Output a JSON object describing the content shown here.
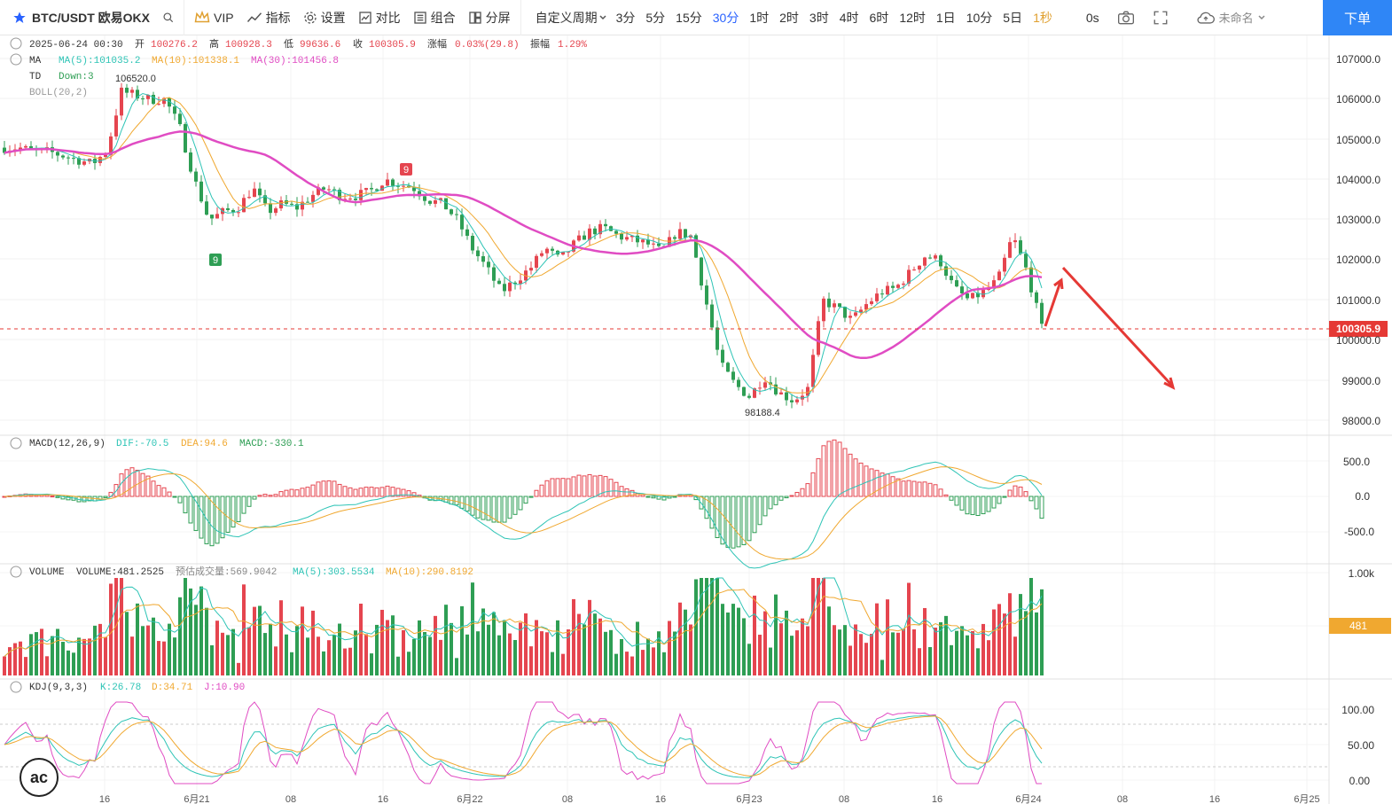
{
  "toolbar": {
    "symbol": "BTC/USDT 欧易OKX",
    "vip": "VIP",
    "indicators": "指标",
    "settings": "设置",
    "compare": "对比",
    "combo": "组合",
    "split": "分屏",
    "custom_period": "自定义周期",
    "periods": [
      "3分",
      "5分",
      "15分",
      "30分",
      "1时",
      "2时",
      "3时",
      "4时",
      "6时",
      "12时",
      "1日",
      "10分",
      "5日",
      "1秒"
    ],
    "active_period": "30分",
    "countdown": "0s",
    "layout_name": "未命名",
    "order_button": "下单"
  },
  "colors": {
    "up": "#e5454f",
    "down": "#2e9e54",
    "ma5": "#2ec4b6",
    "ma10": "#f0a830",
    "ma30": "#e04cc3",
    "accent": "#2962ff",
    "price_line": "#e53935"
  },
  "legend": {
    "date": "2025-06-24 00:30",
    "open_label": "开",
    "open": "100276.2",
    "high_label": "高",
    "high": "100928.3",
    "low_label": "低",
    "low": "99636.6",
    "close_label": "收",
    "close": "100305.9",
    "change_label": "涨幅",
    "change": "0.03%(29.8)",
    "amplitude_label": "振幅",
    "amplitude": "1.29%",
    "ma_label": "MA",
    "ma5": "MA(5):101035.2",
    "ma10": "MA(10):101338.1",
    "ma30": "MA(30):101456.8",
    "td_label": "TD",
    "td": "Down:3",
    "boll": "BOLL(20,2)"
  },
  "annotations": {
    "high_marker": "106520.0",
    "low_marker": "98188.4",
    "td9_top": "9",
    "td9_bottom": "9"
  },
  "price_axis": [
    "107000.0",
    "106000.0",
    "105000.0",
    "104000.0",
    "103000.0",
    "102000.0",
    "101000.0",
    "100000.0",
    "99000.0",
    "98000.0"
  ],
  "last_price": "100305.9",
  "macd": {
    "label": "MACD(12,26,9)",
    "dif": "DIF:-70.5",
    "dea": "DEA:94.6",
    "macd": "MACD:-330.1",
    "axis": [
      "500.0",
      "0.0",
      "-500.0"
    ]
  },
  "volume": {
    "label": "VOLUME",
    "volume": "VOLUME:481.2525",
    "forecast": "预估成交量:569.9042",
    "ma5": "MA(5):303.5534",
    "ma10": "MA(10):290.8192",
    "axis": [
      "1.00k"
    ],
    "current": "481"
  },
  "kdj": {
    "label": "KDJ(9,3,3)",
    "k": "K:26.78",
    "d": "D:34.71",
    "j": "J:10.90",
    "axis": [
      "100.00",
      "50.00",
      "0.00"
    ]
  },
  "time_axis": [
    "16",
    "6月21",
    "08",
    "16",
    "6月22",
    "08",
    "16",
    "6月23",
    "08",
    "16",
    "6月24",
    "08",
    "16",
    "6月25"
  ],
  "chart_data": {
    "type": "candlestick",
    "ylim": [
      97700,
      107300
    ],
    "levels_approx": [
      104800,
      104800,
      104700,
      104700,
      104600,
      104500,
      104400,
      104700,
      106200,
      106100,
      106000,
      106000,
      105300,
      104000,
      103000,
      103200,
      103300,
      103800,
      103200,
      103400,
      103300,
      103600,
      103800,
      103600,
      103600,
      103700,
      104000,
      103900,
      103800,
      103500,
      103400,
      103000,
      102300,
      101800,
      101200,
      101500,
      101800,
      102300,
      102000,
      102400,
      102700,
      102800,
      102600,
      102500,
      102400,
      102200,
      102700,
      102600,
      101000,
      99400,
      98900,
      98600,
      99100,
      98700,
      98500,
      98800,
      101000,
      100800,
      100500,
      100900,
      101200,
      101300,
      101700,
      102100,
      102000,
      101300,
      101000,
      101200,
      101500,
      102600,
      101700,
      100300
    ]
  }
}
